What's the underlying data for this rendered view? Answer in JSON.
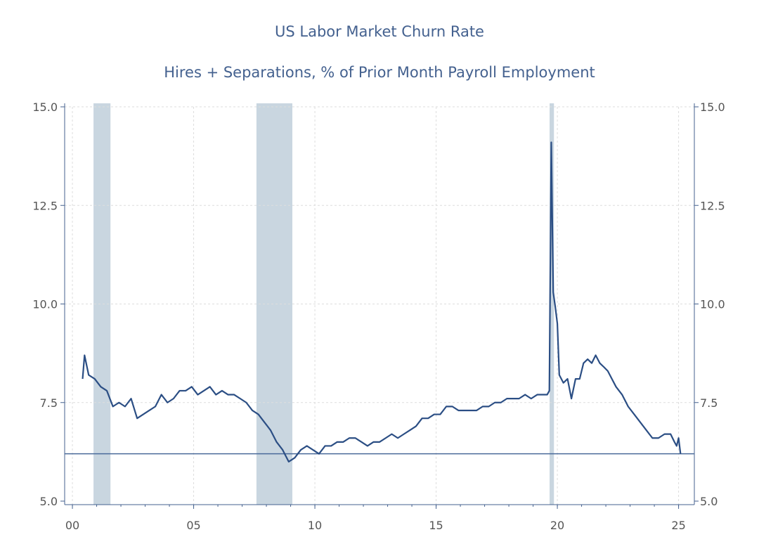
{
  "chart_data": {
    "type": "line",
    "title": "US Labor Market Churn Rate",
    "subtitle": "Hires + Separations, % of Prior Month Payroll Employment",
    "x": [
      2000.42,
      2000.5,
      2000.67,
      2000.92,
      2001.17,
      2001.42,
      2001.67,
      2001.92,
      2002.17,
      2002.42,
      2002.67,
      2002.92,
      2003.17,
      2003.42,
      2003.67,
      2003.92,
      2004.17,
      2004.42,
      2004.67,
      2004.92,
      2005.17,
      2005.42,
      2005.67,
      2005.92,
      2006.17,
      2006.42,
      2006.67,
      2006.92,
      2007.17,
      2007.42,
      2007.67,
      2007.92,
      2008.17,
      2008.42,
      2008.67,
      2008.92,
      2009.17,
      2009.42,
      2009.67,
      2009.92,
      2010.17,
      2010.42,
      2010.67,
      2010.92,
      2011.17,
      2011.42,
      2011.67,
      2011.92,
      2012.17,
      2012.42,
      2012.67,
      2012.92,
      2013.17,
      2013.42,
      2013.67,
      2013.92,
      2014.17,
      2014.42,
      2014.67,
      2014.92,
      2015.17,
      2015.42,
      2015.67,
      2015.92,
      2016.17,
      2016.42,
      2016.67,
      2016.92,
      2017.17,
      2017.42,
      2017.67,
      2017.92,
      2018.17,
      2018.42,
      2018.67,
      2018.92,
      2019.17,
      2019.42,
      2019.58,
      2019.67,
      2019.75,
      2019.83,
      2019.92,
      2020.0,
      2020.08,
      2020.25,
      2020.42,
      2020.58,
      2020.75,
      2020.92,
      2021.08,
      2021.25,
      2021.42,
      2021.58,
      2021.75,
      2021.92,
      2022.08,
      2022.25,
      2022.42,
      2022.67,
      2022.92,
      2023.17,
      2023.42,
      2023.67,
      2023.92,
      2024.17,
      2024.42,
      2024.67,
      2024.83,
      2024.92,
      2025.0,
      2025.08
    ],
    "series": [
      {
        "name": "Churn rate",
        "color": "#2b4e84",
        "values": [
          8.1,
          8.7,
          8.2,
          8.1,
          7.9,
          7.8,
          7.4,
          7.5,
          7.4,
          7.6,
          7.1,
          7.2,
          7.3,
          7.4,
          7.7,
          7.5,
          7.6,
          7.8,
          7.8,
          7.9,
          7.7,
          7.8,
          7.9,
          7.7,
          7.8,
          7.7,
          7.7,
          7.6,
          7.5,
          7.3,
          7.2,
          7.0,
          6.8,
          6.5,
          6.3,
          6.0,
          6.1,
          6.3,
          6.4,
          6.3,
          6.2,
          6.4,
          6.4,
          6.5,
          6.5,
          6.6,
          6.6,
          6.5,
          6.4,
          6.5,
          6.5,
          6.6,
          6.7,
          6.6,
          6.7,
          6.8,
          6.9,
          7.1,
          7.1,
          7.2,
          7.2,
          7.4,
          7.4,
          7.3,
          7.3,
          7.3,
          7.3,
          7.4,
          7.4,
          7.5,
          7.5,
          7.6,
          7.6,
          7.6,
          7.7,
          7.6,
          7.7,
          7.7,
          7.7,
          7.8,
          14.1,
          10.3,
          9.9,
          9.5,
          8.2,
          8.0,
          8.1,
          7.6,
          8.1,
          8.1,
          8.5,
          8.6,
          8.5,
          8.7,
          8.5,
          8.4,
          8.3,
          8.1,
          7.9,
          7.7,
          7.4,
          7.2,
          7.0,
          6.8,
          6.6,
          6.6,
          6.7,
          6.7,
          6.5,
          6.4,
          6.6,
          6.2
        ]
      }
    ],
    "recessions": [
      [
        2000.87,
        2001.57
      ],
      [
        2007.59,
        2009.07
      ],
      [
        2019.68,
        2019.86
      ]
    ],
    "recession_color": "#c9d6e0",
    "reference_line": 6.2,
    "xlim": [
      1999.68,
      2025.65
    ],
    "xticks": [
      {
        "value": 2000,
        "label": "00"
      },
      {
        "value": 2005,
        "label": "05"
      },
      {
        "value": 2010,
        "label": "10"
      },
      {
        "value": 2015,
        "label": "15"
      },
      {
        "value": 2020,
        "label": "20"
      },
      {
        "value": 2025,
        "label": "25"
      }
    ],
    "ylim": [
      5,
      15
    ],
    "yticks": [
      {
        "value": 5,
        "label": "5.0"
      },
      7.5,
      {
        "value": 10,
        "label": "10.0"
      },
      12.5,
      {
        "value": 15,
        "label": "15.0"
      }
    ],
    "grid": true
  }
}
